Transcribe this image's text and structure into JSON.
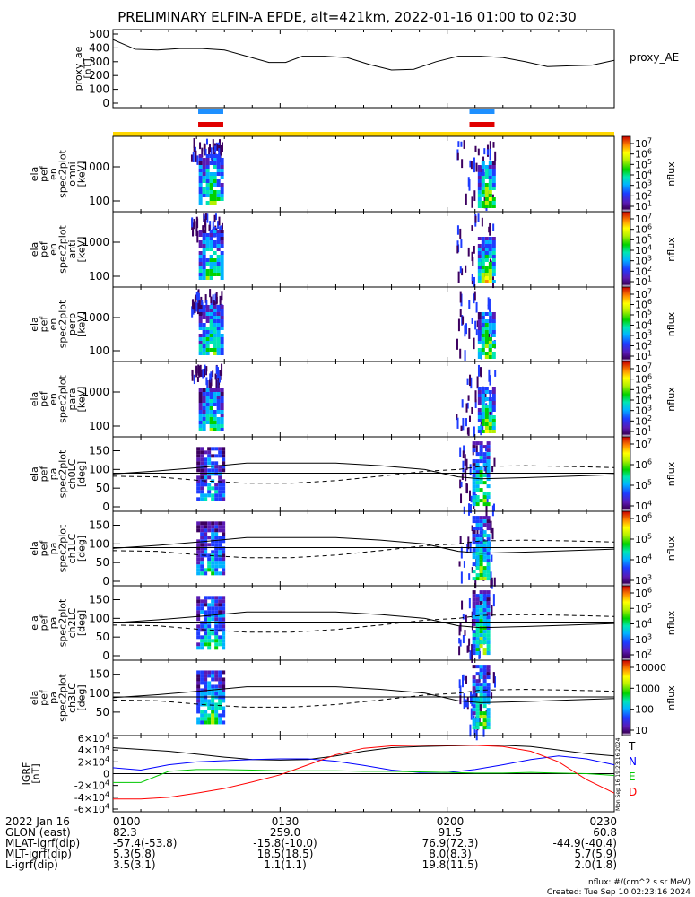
{
  "title": "PRELIMINARY ELFIN-A EPDE, alt=421km, 2022-01-16 01:00 to 02:30",
  "proxy_panel": {
    "ylabel_lines": [
      "proxy_ae",
      "[nT]"
    ],
    "yticks": [
      0,
      100,
      200,
      300,
      400,
      500
    ],
    "legend": "proxy_AE"
  },
  "spec_panels": [
    {
      "ylabel_lines": [
        "ela",
        "pef",
        "en",
        "spec2plot",
        "omni",
        "[keV]"
      ],
      "yticks": [
        "100",
        "1000"
      ],
      "cb_ticks": [
        "10^7",
        "10^6",
        "10^5",
        "10^4",
        "10^3",
        "10^2",
        "10^1"
      ],
      "cb_label": "nflux"
    },
    {
      "ylabel_lines": [
        "ela",
        "pef",
        "en",
        "spec2plot",
        "anti",
        "[keV]"
      ],
      "yticks": [
        "100",
        "1000"
      ],
      "cb_ticks": [
        "10^7",
        "10^6",
        "10^5",
        "10^4",
        "10^3",
        "10^2",
        "10^1"
      ],
      "cb_label": "nflux"
    },
    {
      "ylabel_lines": [
        "ela",
        "pef",
        "en",
        "spec2plot",
        "perp",
        "[keV]"
      ],
      "yticks": [
        "100",
        "1000"
      ],
      "cb_ticks": [
        "10^7",
        "10^6",
        "10^5",
        "10^4",
        "10^3",
        "10^2",
        "10^1"
      ],
      "cb_label": "nflux"
    },
    {
      "ylabel_lines": [
        "ela",
        "pef",
        "en",
        "spec2plot",
        "para",
        "[keV]"
      ],
      "yticks": [
        "100",
        "1000"
      ],
      "cb_ticks": [
        "10^7",
        "10^6",
        "10^5",
        "10^4",
        "10^3",
        "10^2",
        "10^1"
      ],
      "cb_label": "nflux"
    }
  ],
  "pa_panels": [
    {
      "ylabel_lines": [
        "ela",
        "pef",
        "pa",
        "spec2plot",
        "ch0LC",
        "[deg]"
      ],
      "yticks": [
        "0",
        "50",
        "100",
        "150"
      ],
      "cb_ticks": [
        "10^7",
        "10^6",
        "10^5",
        "10^4"
      ],
      "cb_label": "nflux"
    },
    {
      "ylabel_lines": [
        "ela",
        "pef",
        "pa",
        "spec2plot",
        "ch1LC",
        "[deg]"
      ],
      "yticks": [
        "0",
        "50",
        "100",
        "150"
      ],
      "cb_ticks": [
        "10^6",
        "10^5",
        "10^4",
        "10^3"
      ],
      "cb_label": "nflux"
    },
    {
      "ylabel_lines": [
        "ela",
        "pef",
        "pa",
        "spec2plot",
        "ch2LC",
        "[deg]"
      ],
      "yticks": [
        "0",
        "50",
        "100",
        "150"
      ],
      "cb_ticks": [
        "10^6",
        "10^5",
        "10^4",
        "10^3",
        "10^2"
      ],
      "cb_label": "nflux"
    },
    {
      "ylabel_lines": [
        "ela",
        "pef",
        "pa",
        "spec2plot",
        "ch3LC",
        "[deg]"
      ],
      "yticks": [
        "50",
        "100",
        "150"
      ],
      "cb_ticks": [
        "10000",
        "1000",
        "100",
        "10"
      ],
      "cb_label": "nflux"
    }
  ],
  "igrf_panel": {
    "ylabel_lines": [
      "IGRF",
      "[nT]"
    ],
    "yticks": [
      "-6×10^4",
      "-4×10^4",
      "-2×10^4",
      "0",
      "2×10^4",
      "4×10^4",
      "6×10^4"
    ],
    "components": [
      {
        "name": "T",
        "color": "#000000"
      },
      {
        "name": "N",
        "color": "#0000ff"
      },
      {
        "name": "E",
        "color": "#00c800"
      },
      {
        "name": "D",
        "color": "#ff0000"
      }
    ],
    "side_stamp": "Mon Sep 16 19:23:16 2024"
  },
  "footer": {
    "rows": [
      {
        "label": "2022 Jan 16",
        "values": [
          "0100",
          "0130",
          "0200",
          "0230"
        ]
      },
      {
        "label": "GLON (east)",
        "values": [
          "82.3",
          "259.0",
          "91.5",
          "60.8"
        ]
      },
      {
        "label": "MLAT-igrf(dip)",
        "values": [
          "-57.4(-53.8)",
          "-15.8(-10.0)",
          "76.9(72.3)",
          "-44.9(-40.4)"
        ]
      },
      {
        "label": "MLT-igrf(dip)",
        "values": [
          "5.3(5.8)",
          "18.5(18.5)",
          "8.0(8.3)",
          "5.7(5.9)"
        ]
      },
      {
        "label": "L-igrf(dip)",
        "values": [
          "3.5(3.1)",
          "1.1(1.1)",
          "19.8(11.5)",
          "2.0(1.8)"
        ]
      }
    ],
    "note1": "nflux: #/(cm^2 s sr MeV)",
    "note2": "Created: Tue Sep 10 02:23:16 2024"
  },
  "science_zones": [
    {
      "start_min": 15.3,
      "end_min": 19.8,
      "colors": [
        "#1e90ff",
        "#e00000"
      ]
    },
    {
      "start_min": 64.0,
      "end_min": 68.5,
      "colors": [
        "#1e90ff",
        "#e00000"
      ]
    }
  ],
  "chart_data": {
    "type": "line",
    "x_unit": "minutes after 2022-01-16 01:00",
    "xlim": [
      0,
      90
    ],
    "proxy_ae": {
      "ylim": [
        0,
        500
      ],
      "x": [
        0,
        4,
        8,
        12,
        16,
        20,
        24,
        28,
        31,
        34,
        38,
        42,
        46,
        50,
        54,
        58,
        62,
        66,
        70,
        74,
        78,
        82,
        86,
        90
      ],
      "y": [
        460,
        390,
        385,
        395,
        395,
        385,
        340,
        295,
        295,
        340,
        340,
        330,
        280,
        240,
        245,
        300,
        340,
        340,
        330,
        300,
        265,
        270,
        275,
        310
      ]
    },
    "pitch_angle_ref_lines": {
      "solid": {
        "x": [
          0,
          8,
          16,
          24,
          32,
          40,
          48,
          56,
          62,
          66,
          74,
          82,
          90
        ],
        "y": [
          88,
          96,
          106,
          117,
          117,
          117,
          110,
          100,
          80,
          75,
          78,
          82,
          86
        ]
      },
      "dashed": {
        "x": [
          0,
          8,
          16,
          24,
          32,
          40,
          48,
          56,
          62,
          66,
          74,
          82,
          90
        ],
        "y": [
          82,
          80,
          70,
          63,
          63,
          70,
          82,
          95,
          100,
          108,
          110,
          108,
          105
        ]
      },
      "horizontal": 90
    },
    "igrf": {
      "ylim": [
        -60000,
        60000
      ],
      "x": [
        0,
        5,
        10,
        15,
        20,
        25,
        30,
        35,
        40,
        45,
        50,
        55,
        60,
        65,
        70,
        75,
        80,
        85,
        90
      ],
      "series": [
        {
          "name": "T",
          "values": [
            44000,
            41000,
            38000,
            33000,
            28000,
            24000,
            23000,
            24000,
            30000,
            38000,
            44000,
            46000,
            47000,
            48000,
            48000,
            46000,
            40000,
            34000,
            30000
          ]
        },
        {
          "name": "N",
          "values": [
            10000,
            6000,
            15000,
            20000,
            22000,
            24000,
            25000,
            25000,
            21000,
            14000,
            6000,
            2000,
            2000,
            7000,
            15000,
            24000,
            30000,
            25000,
            15000
          ]
        },
        {
          "name": "E",
          "values": [
            -15000,
            -15000,
            4000,
            7000,
            7000,
            6000,
            5000,
            5000,
            5000,
            4000,
            4000,
            3000,
            2000,
            1000,
            1000,
            2000,
            1000,
            0,
            -3000
          ]
        },
        {
          "name": "D",
          "values": [
            -43000,
            -43000,
            -40000,
            -33000,
            -25000,
            -14000,
            -2000,
            15000,
            32000,
            43000,
            47000,
            48000,
            48000,
            48000,
            46000,
            38000,
            20000,
            -10000,
            -33000
          ]
        }
      ]
    }
  }
}
